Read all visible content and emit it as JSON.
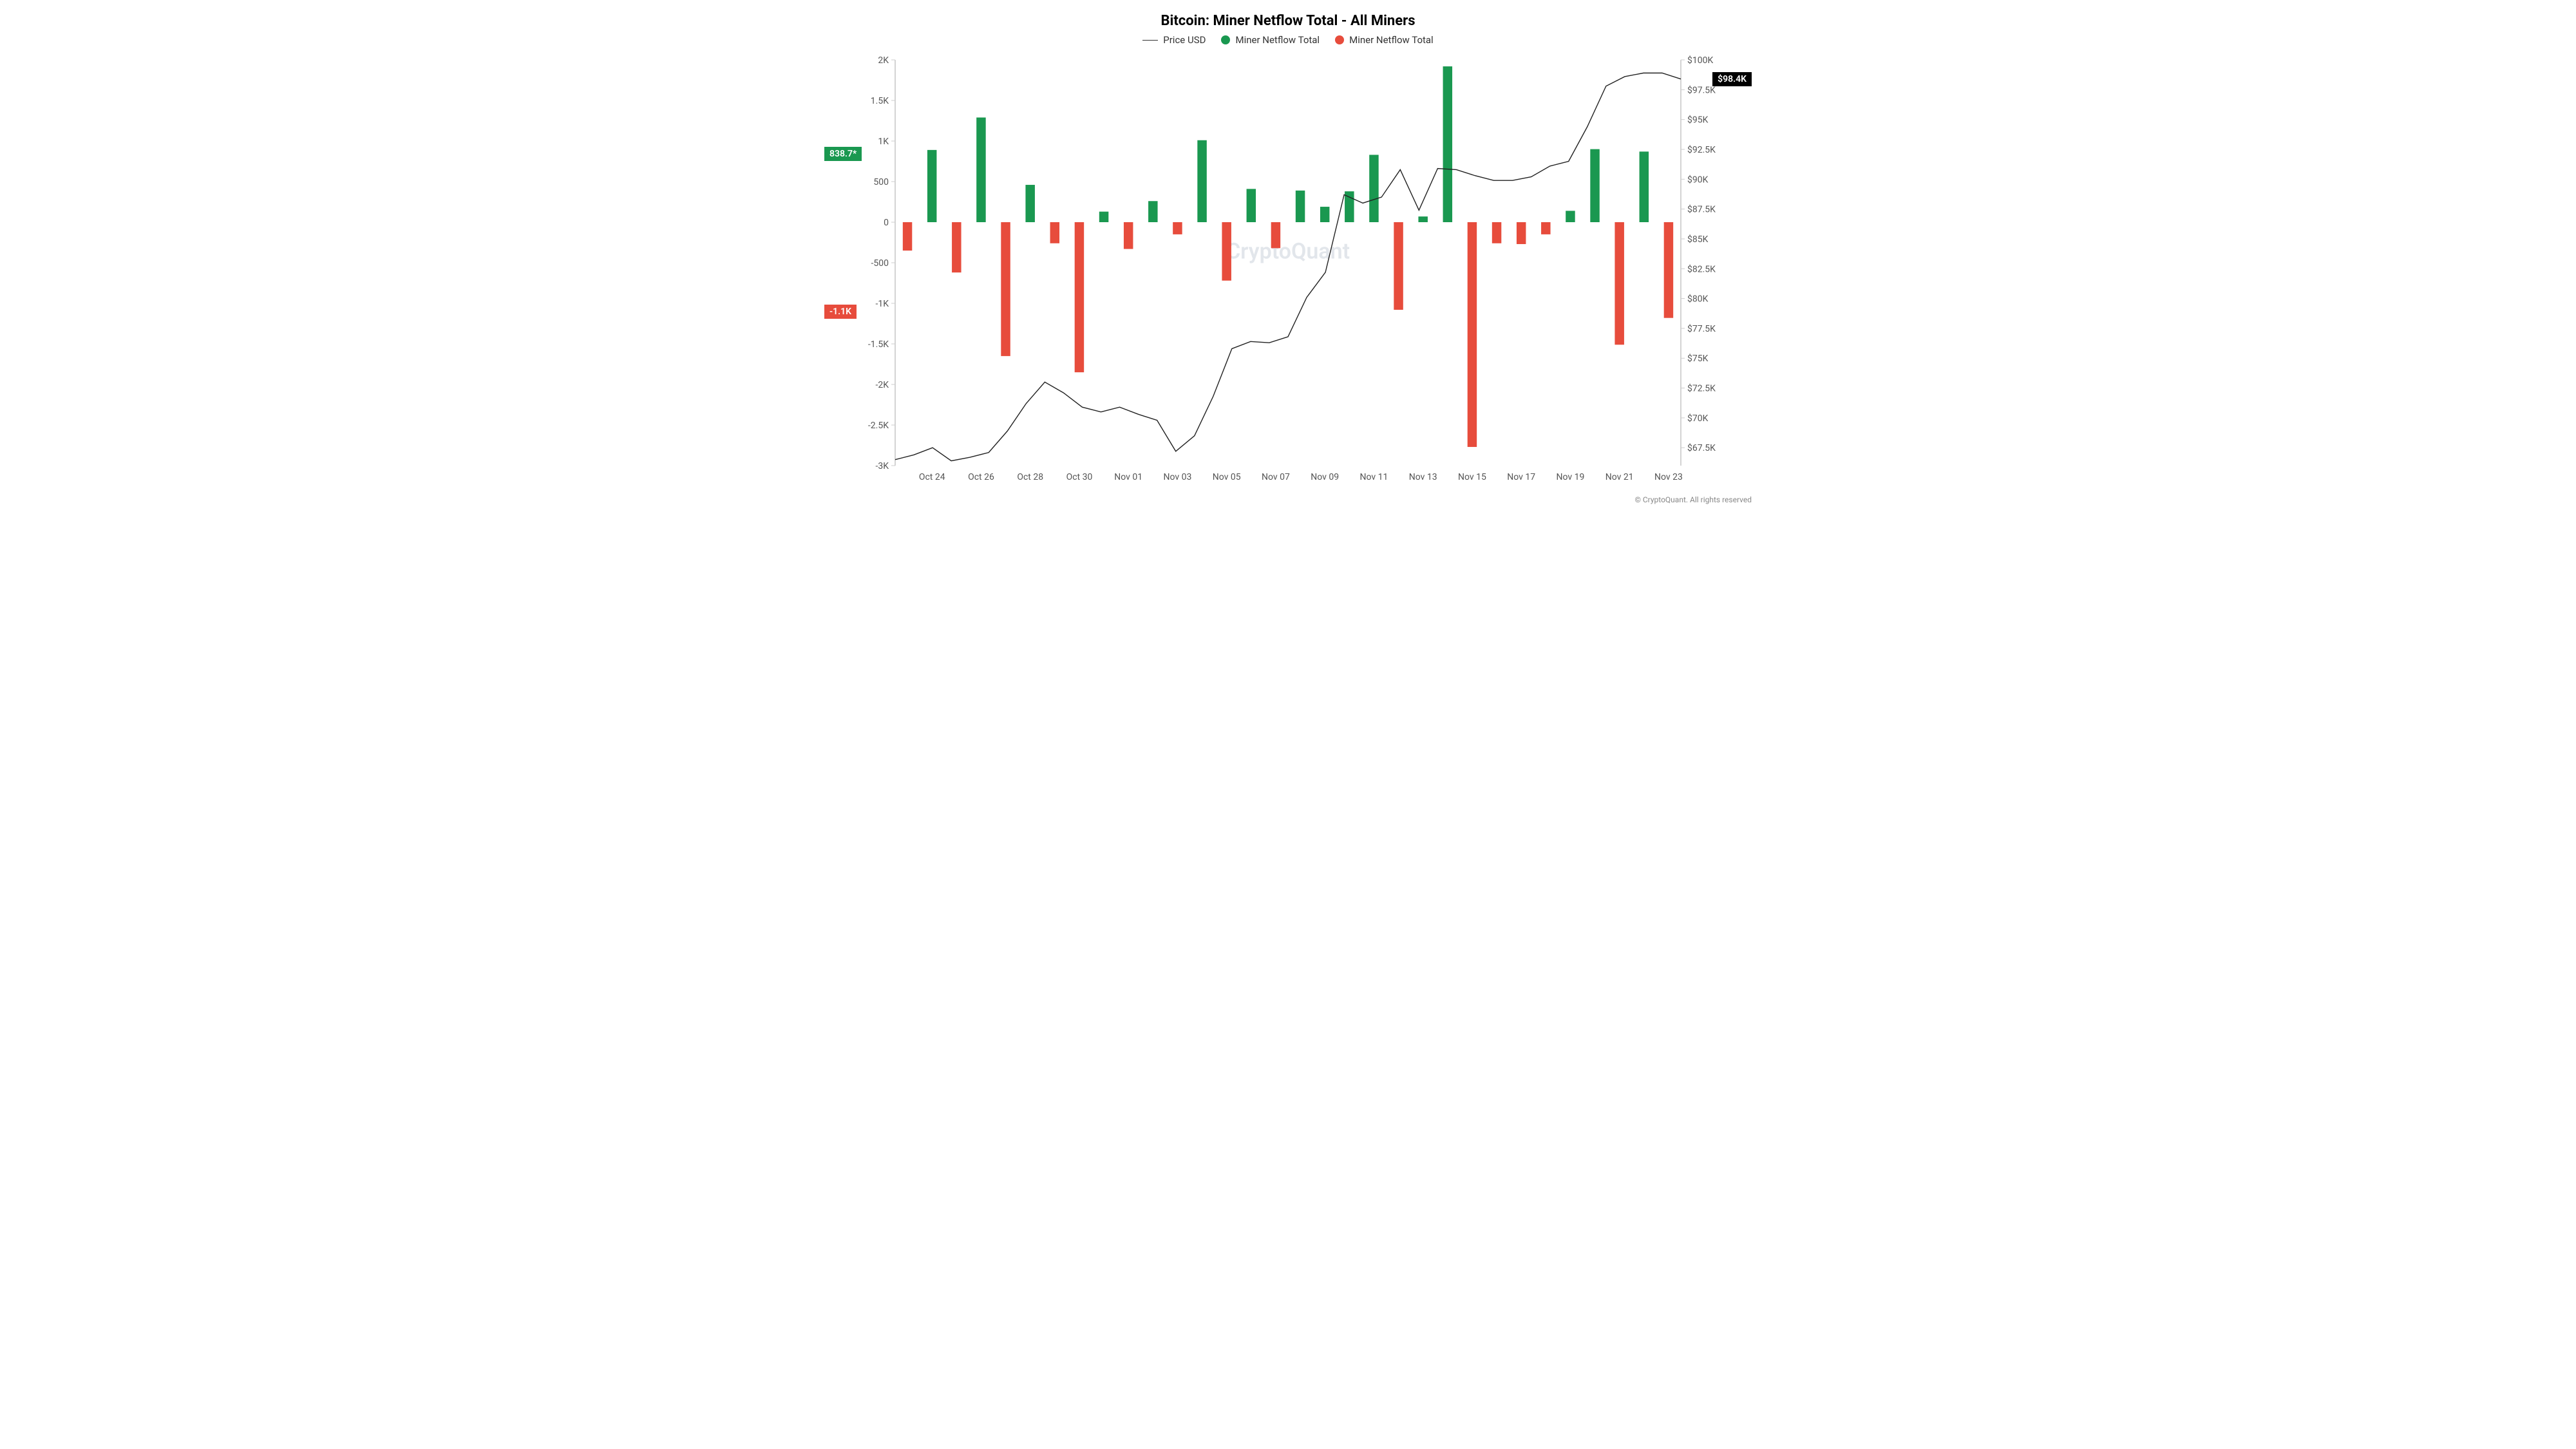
{
  "chart": {
    "title": "Bitcoin: Miner Netflow Total - All Miners",
    "title_fontsize": 22,
    "watermark": "CryptoQuant",
    "footer": "© CryptoQuant. All rights reserved",
    "legend": [
      {
        "label": "Price USD",
        "type": "line",
        "color": "#333333"
      },
      {
        "label": "Miner Netflow Total",
        "type": "dot",
        "color": "#1a9850"
      },
      {
        "label": "Miner Netflow Total",
        "type": "dot",
        "color": "#e74c3c"
      }
    ],
    "left_axis": {
      "min": -3000,
      "max": 2000,
      "ticks": [
        -3000,
        -2500,
        -2000,
        -1500,
        -1000,
        -500,
        0,
        500,
        1000,
        1500,
        2000
      ],
      "tick_labels": [
        "-3K",
        "-2.5K",
        "-2K",
        "-1.5K",
        "-1K",
        "-500",
        "0",
        "500",
        "1K",
        "1.5K",
        "2K"
      ]
    },
    "right_axis": {
      "min": 66000,
      "max": 100000,
      "ticks": [
        67500,
        70000,
        72500,
        75000,
        77500,
        80000,
        82500,
        85000,
        87500,
        90000,
        92500,
        95000,
        97500,
        100000
      ],
      "tick_labels": [
        "$67.5K",
        "$70K",
        "$72.5K",
        "$75K",
        "$77.5K",
        "$80K",
        "$82.5K",
        "$85K",
        "$87.5K",
        "$90K",
        "$92.5K",
        "$95K",
        "$97.5K",
        "$100K"
      ]
    },
    "x_axis": {
      "labels": [
        "Oct 24",
        "Oct 26",
        "Oct 28",
        "Oct 30",
        "Nov 01",
        "Nov 03",
        "Nov 05",
        "Nov 07",
        "Nov 09",
        "Nov 11",
        "Nov 13",
        "Nov 15",
        "Nov 17",
        "Nov 19",
        "Nov 21",
        "Nov 23"
      ]
    },
    "bars": [
      {
        "i": 0,
        "v": -350
      },
      {
        "i": 1,
        "v": 890
      },
      {
        "i": 2,
        "v": -620
      },
      {
        "i": 3,
        "v": 1290
      },
      {
        "i": 4,
        "v": -1650
      },
      {
        "i": 5,
        "v": 460
      },
      {
        "i": 6,
        "v": -260
      },
      {
        "i": 7,
        "v": -1850
      },
      {
        "i": 8,
        "v": 130
      },
      {
        "i": 9,
        "v": -330
      },
      {
        "i": 10,
        "v": 260
      },
      {
        "i": 11,
        "v": -150
      },
      {
        "i": 12,
        "v": 1010
      },
      {
        "i": 13,
        "v": -720
      },
      {
        "i": 14,
        "v": 410
      },
      {
        "i": 15,
        "v": -320
      },
      {
        "i": 16,
        "v": 390
      },
      {
        "i": 17,
        "v": 190
      },
      {
        "i": 18,
        "v": 380
      },
      {
        "i": 19,
        "v": 830
      },
      {
        "i": 20,
        "v": -1080
      },
      {
        "i": 21,
        "v": 70
      },
      {
        "i": 22,
        "v": 1920
      },
      {
        "i": 23,
        "v": -2770
      },
      {
        "i": 24,
        "v": -260
      },
      {
        "i": 25,
        "v": -270
      },
      {
        "i": 26,
        "v": -150
      },
      {
        "i": 27,
        "v": 140
      },
      {
        "i": 28,
        "v": 900
      },
      {
        "i": 29,
        "v": -1510
      },
      {
        "i": 30,
        "v": 870
      },
      {
        "i": 31,
        "v": -1180
      }
    ],
    "bar_count": 32,
    "bar_width_ratio": 0.38,
    "positive_color": "#1a9850",
    "negative_color": "#e74c3c",
    "price_line": [
      66500,
      66900,
      67500,
      66400,
      66700,
      67100,
      68900,
      71200,
      73000,
      72100,
      70900,
      70500,
      70900,
      70300,
      69800,
      67200,
      68500,
      71800,
      75800,
      76400,
      76300,
      76800,
      80100,
      82200,
      88700,
      88000,
      88500,
      90800,
      87400,
      90900,
      90800,
      90300,
      89900,
      89900,
      90200,
      91100,
      91500,
      94400,
      97800,
      98600,
      98900,
      98900,
      98400
    ],
    "price_color": "#222222",
    "price_end_badge": {
      "text": "$98.4K",
      "bg": "#000000"
    },
    "left_badges": [
      {
        "value": 838.7,
        "text": "838.7*",
        "bg": "#1a9850"
      },
      {
        "value": -1100,
        "text": "-1.1K",
        "bg": "#e74c3c"
      }
    ],
    "background_color": "#ffffff",
    "grid": false
  }
}
